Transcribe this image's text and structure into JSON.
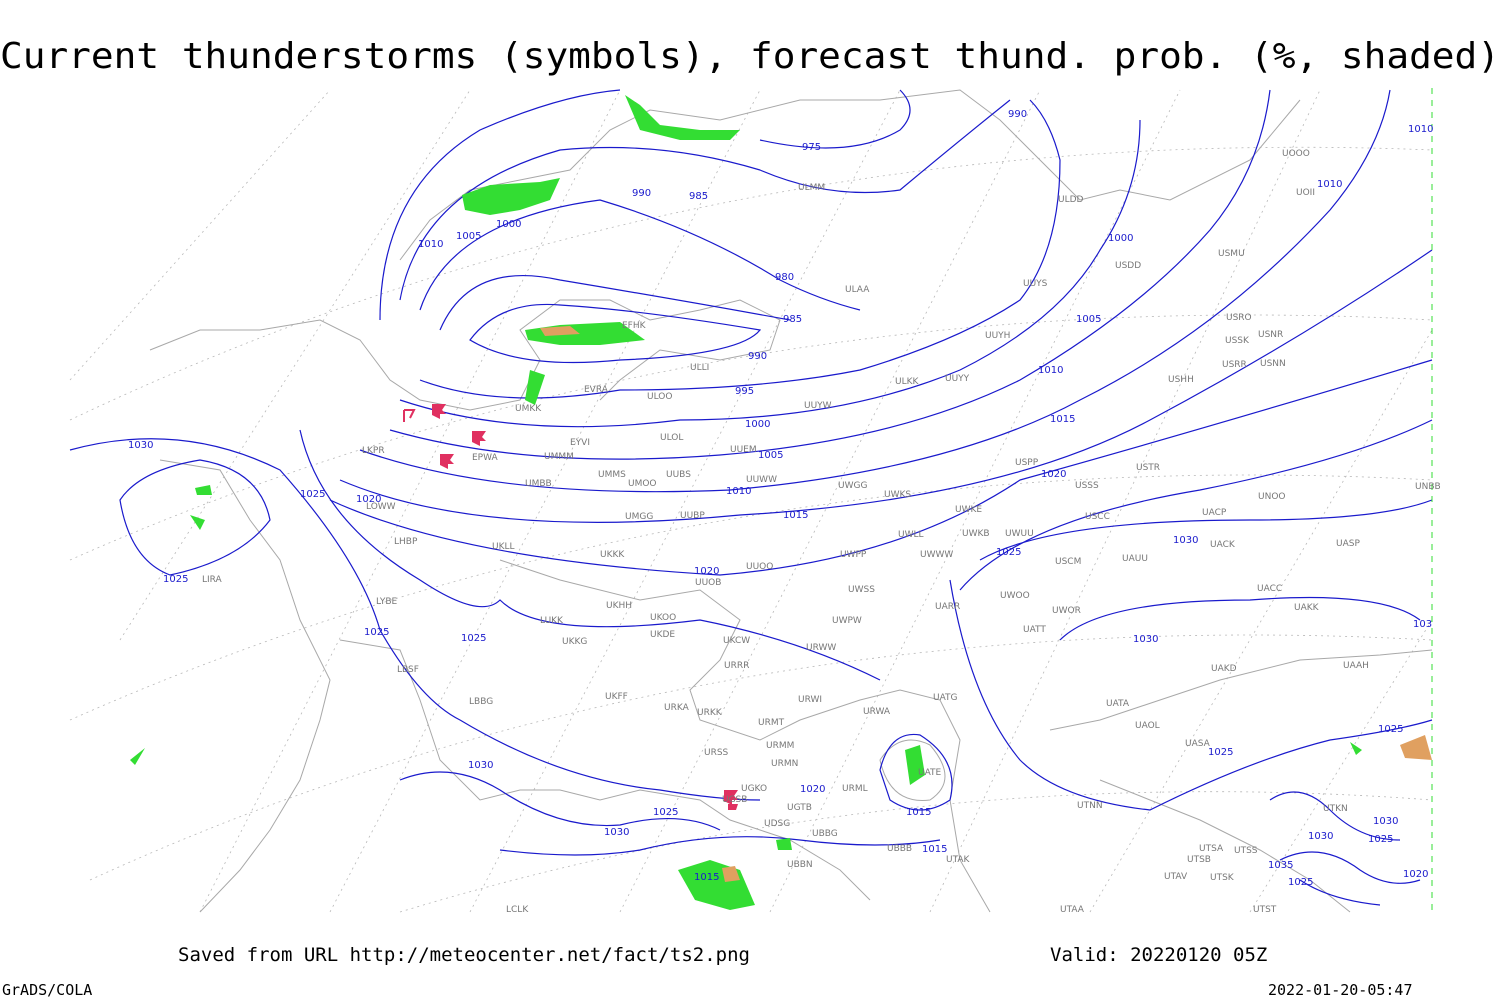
{
  "header": {
    "title": "Current thunderstorms (symbols), forecast thund. prob. (%, shaded)"
  },
  "footer": {
    "saved": "Saved from URL http://meteocenter.net/fact/ts2.png",
    "valid": "Valid: 20220120 05Z",
    "software": "GrADS/COLA",
    "timestamp": "2022-01-20-05:47"
  },
  "isobar_labels": [
    975,
    990,
    990,
    985,
    1000,
    1005,
    1010,
    980,
    985,
    990,
    995,
    1000,
    1005,
    1010,
    1015,
    1020,
    1015,
    1010,
    1005,
    1000,
    1010,
    1010,
    1030,
    1025,
    1020,
    1025,
    1025,
    1025,
    1020,
    1025,
    1030,
    1030,
    1030,
    1025,
    1030,
    1020,
    1015,
    1015,
    1015,
    1025,
    1025,
    1030,
    1030,
    1025,
    1035,
    1025,
    1020,
    103
  ],
  "stations": [
    "ULMM",
    "ULDD",
    "USDD",
    "USMU",
    "UOOO",
    "UOII",
    "ULAA",
    "UUYS",
    "USRO",
    "USSK",
    "USNR",
    "USRR",
    "USNN",
    "USHH",
    "EFHK",
    "UUYH",
    "ULLI",
    "UUYY",
    "ULKK",
    "EVRA",
    "ULOO",
    "UMKK",
    "UUYW",
    "ULOL",
    "UUEM",
    "EYVI",
    "EPWA",
    "UMMM",
    "UMMS",
    "UMOO",
    "UUBS",
    "UMBB",
    "UUWW",
    "UWGG",
    "UWKS",
    "USPP",
    "USTR",
    "USSS",
    "UNOO",
    "UNBB",
    "UMGG",
    "UUBP",
    "UWKE",
    "USCC",
    "UACP",
    "LKPR",
    "LOWW",
    "LHBP",
    "UKLL",
    "UKKK",
    "UUOO",
    "UWPP",
    "UWLL",
    "UWWW",
    "UWKB",
    "UWUU",
    "USCM",
    "UAUU",
    "UACK",
    "UASP",
    "UUOB",
    "UWSS",
    "UARR",
    "UWOO",
    "UWOR",
    "UACC",
    "UAKK",
    "LIRA",
    "LYBE",
    "LUKK",
    "UKHH",
    "UKKG",
    "UKOO",
    "UKDE",
    "UKCW",
    "UWPW",
    "UATT",
    "LBSF",
    "URRR",
    "URWW",
    "UAKD",
    "UAAH",
    "UKFF",
    "LBBG",
    "URWI",
    "UATG",
    "UATA",
    "UAOL",
    "URKA",
    "URKK",
    "URMT",
    "URWA",
    "URMM",
    "UASA",
    "URSS",
    "URMN",
    "UATE",
    "UGSB",
    "UGKO",
    "URML",
    "UTNN",
    "UGTB",
    "UDSG",
    "UBBG",
    "UTKN",
    "UTAK",
    "UBBB",
    "UTSA",
    "UTSS",
    "UBBN",
    "UTSB",
    "UTAV",
    "UTSK",
    "LCLK",
    "UTAA",
    "UTST"
  ]
}
